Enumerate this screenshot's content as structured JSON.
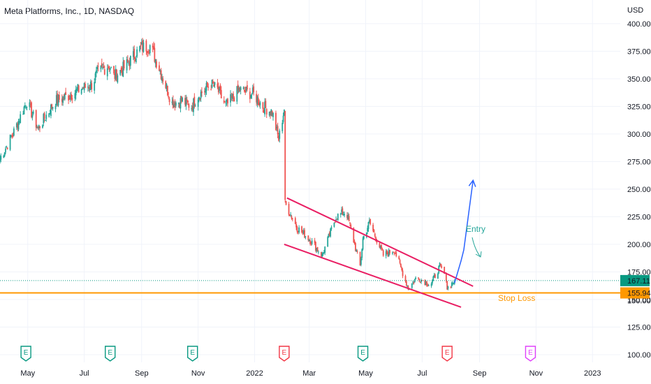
{
  "header": {
    "title": "Meta Platforms, Inc., 1D, NASDAQ"
  },
  "colors": {
    "up": "#26a69a",
    "down": "#ef5350",
    "wedge": "#e91e63",
    "projection": "#2962ff",
    "stop": "#ff9800",
    "entry_note": "#26a69a",
    "earnings": "#089981",
    "earnings_bad": "#f23645",
    "earnings_future": "#e040fb",
    "last_price_bg": "#089981"
  },
  "chart_data": {
    "type": "candlestick",
    "title": "Meta Platforms, Inc., 1D, NASDAQ",
    "currency": "USD",
    "x_tick_labels": [
      "May",
      "Jul",
      "Sep",
      "Nov",
      "2022",
      "Mar",
      "May",
      "Jul",
      "Sep",
      "Nov",
      "2023"
    ],
    "y_tick_labels": [
      "100.00",
      "125.00",
      "150.00",
      "175.00",
      "200.00",
      "225.00",
      "250.00",
      "275.00",
      "300.00",
      "325.00",
      "350.00",
      "375.00",
      "400.00"
    ],
    "y_range": [
      93,
      405
    ],
    "x_range": [
      "2021-04-01",
      "2023-01-31"
    ],
    "grid": true,
    "price_path": [
      [
        "2021-04-01",
        278
      ],
      [
        "2021-04-15",
        300
      ],
      [
        "2021-04-30",
        330
      ],
      [
        "2021-05-12",
        305
      ],
      [
        "2021-05-31",
        330
      ],
      [
        "2021-06-15",
        335
      ],
      [
        "2021-06-25",
        340
      ],
      [
        "2021-07-09",
        345
      ],
      [
        "2021-07-15",
        355
      ],
      [
        "2021-07-28",
        363
      ],
      [
        "2021-08-02",
        352
      ],
      [
        "2021-08-13",
        360
      ],
      [
        "2021-08-31",
        378
      ],
      [
        "2021-09-10",
        380
      ],
      [
        "2021-09-20",
        360
      ],
      [
        "2021-10-04",
        328
      ],
      [
        "2021-10-15",
        330
      ],
      [
        "2021-10-25",
        325
      ],
      [
        "2021-11-01",
        335
      ],
      [
        "2021-11-15",
        345
      ],
      [
        "2021-11-22",
        340
      ],
      [
        "2021-12-01",
        325
      ],
      [
        "2021-12-15",
        340
      ],
      [
        "2021-12-31",
        336
      ],
      [
        "2022-01-10",
        325
      ],
      [
        "2022-01-20",
        320
      ],
      [
        "2022-01-27",
        295
      ],
      [
        "2022-02-02",
        323
      ],
      [
        "2022-02-03",
        237
      ],
      [
        "2022-02-16",
        215
      ],
      [
        "2022-03-01",
        205
      ],
      [
        "2022-03-15",
        190
      ],
      [
        "2022-03-30",
        225
      ],
      [
        "2022-04-10",
        230
      ],
      [
        "2022-04-25",
        180
      ],
      [
        "2022-04-28",
        205
      ],
      [
        "2022-05-05",
        220
      ],
      [
        "2022-05-20",
        190
      ],
      [
        "2022-06-01",
        195
      ],
      [
        "2022-06-16",
        160
      ],
      [
        "2022-06-25",
        170
      ],
      [
        "2022-07-10",
        163
      ],
      [
        "2022-07-20",
        180
      ],
      [
        "2022-07-27",
        170
      ],
      [
        "2022-07-28",
        160
      ],
      [
        "2022-08-05",
        167.11
      ]
    ],
    "last_price": 167.11,
    "stop_loss": 155.94,
    "annotations": [
      {
        "text": "Entry",
        "color": "#26a69a"
      },
      {
        "text": "Stop Loss",
        "color": "#ff9800"
      }
    ],
    "wedge_upper": [
      [
        "2022-02-05",
        242
      ],
      [
        "2022-08-25",
        162
      ]
    ],
    "wedge_lower": [
      [
        "2022-02-02",
        200
      ],
      [
        "2022-08-12",
        143
      ]
    ],
    "projection": [
      [
        "2022-08-05",
        165
      ],
      [
        "2022-08-12",
        185
      ],
      [
        "2022-08-15",
        195
      ],
      [
        "2022-08-25",
        258
      ]
    ],
    "earnings": [
      {
        "date": "2021-04-29",
        "kind": "good"
      },
      {
        "date": "2021-07-29",
        "kind": "good"
      },
      {
        "date": "2021-10-26",
        "kind": "good"
      },
      {
        "date": "2022-02-02",
        "kind": "bad"
      },
      {
        "date": "2022-04-28",
        "kind": "good"
      },
      {
        "date": "2022-07-28",
        "kind": "bad"
      },
      {
        "date": "2022-10-26",
        "kind": "future"
      }
    ],
    "earnings_label": "E"
  },
  "price_labels": {
    "usd": "USD",
    "last": "167.11",
    "stop": "155.94",
    "partial_under_stop": "150.00"
  }
}
